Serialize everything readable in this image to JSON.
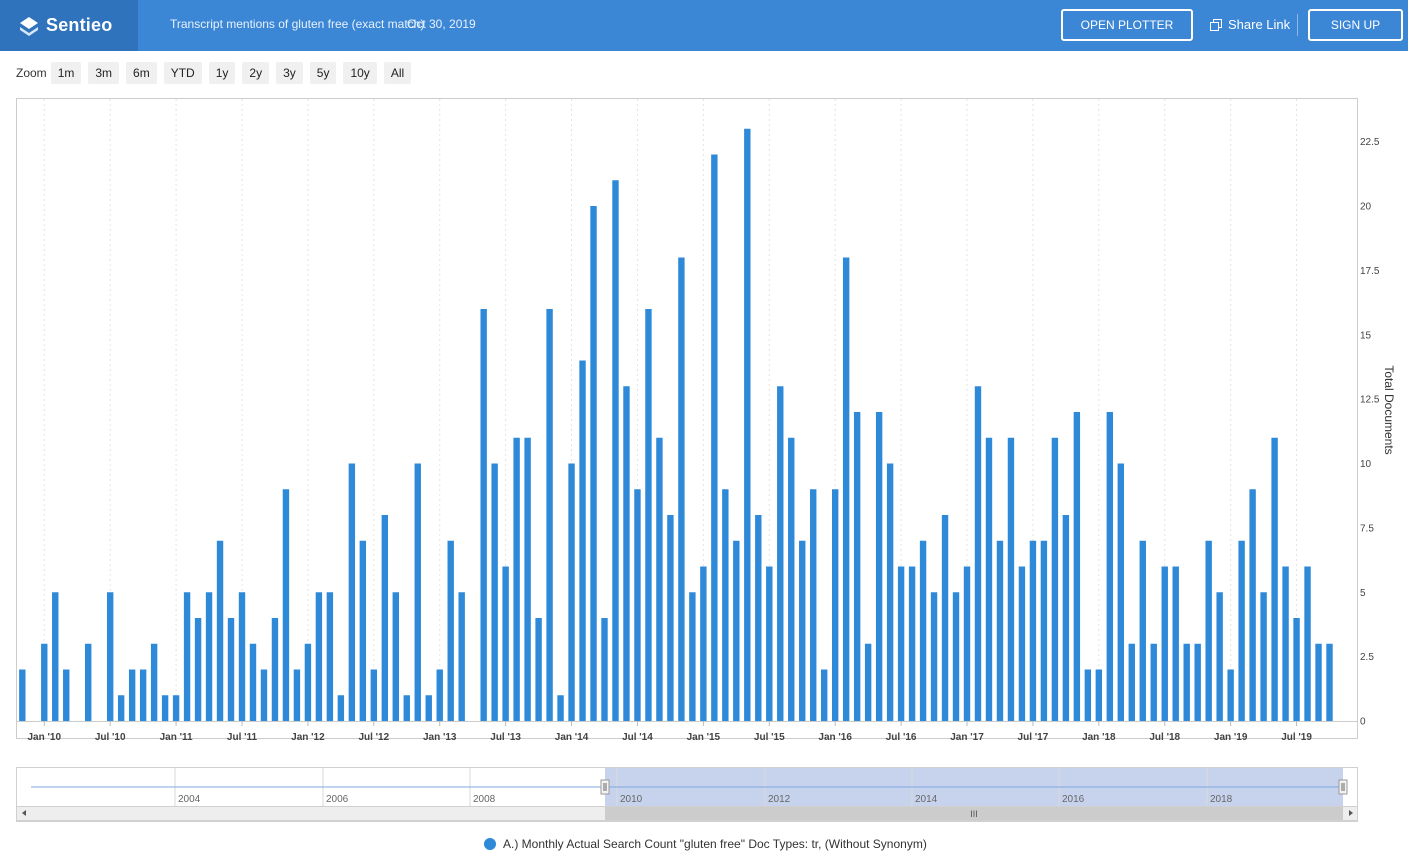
{
  "header": {
    "brand": "Sentieo",
    "title": "Transcript mentions of gluten free (exact match)",
    "date": "Oct 30, 2019",
    "open_plotter": "OPEN PLOTTER",
    "share_link": "Share Link",
    "sign_up": "SIGN UP"
  },
  "zoom": {
    "label": "Zoom",
    "buttons": [
      "1m",
      "3m",
      "6m",
      "YTD",
      "1y",
      "2y",
      "3y",
      "5y",
      "10y",
      "All"
    ]
  },
  "colors": {
    "accent": "#3b87d6",
    "bar": "#2e8ad8",
    "brand_bg": "#2f73bd"
  },
  "legend": {
    "label": "A.) Monthly Actual Search Count \"gluten free\" Doc Types: tr, (Without Synonym)"
  },
  "navigator": {
    "year_labels": [
      "2004",
      "2006",
      "2008",
      "2010",
      "2012",
      "2014",
      "2016",
      "2018"
    ],
    "selected_start": "2010",
    "selected_end": "2019"
  },
  "chart_data": {
    "type": "bar",
    "ylabel": "Total Documents",
    "ylim": [
      0,
      23.5
    ],
    "y_ticks": [
      "0",
      "2.5",
      "5",
      "7.5",
      "10",
      "12.5",
      "15",
      "17.5",
      "20",
      "22.5"
    ],
    "x_ticks": [
      "Jan '10",
      "Jul '10",
      "Jan '11",
      "Jul '11",
      "Jan '12",
      "Jul '12",
      "Jan '13",
      "Jul '13",
      "Jan '14",
      "Jul '14",
      "Jan '15",
      "Jul '15",
      "Jan '16",
      "Jul '16",
      "Jan '17",
      "Jul '17",
      "Jan '18",
      "Jul '18",
      "Jan '19",
      "Jul '19"
    ],
    "x_start": "2009-11",
    "series": [
      {
        "name": "A.) Monthly Actual Search Count \"gluten free\" Doc Types: tr, (Without Synonym)",
        "values": [
          2,
          0,
          3,
          5,
          2,
          0,
          3,
          0,
          5,
          1,
          2,
          2,
          3,
          1,
          1,
          5,
          4,
          5,
          7,
          4,
          5,
          3,
          2,
          4,
          9,
          2,
          3,
          5,
          5,
          1,
          10,
          7,
          2,
          8,
          5,
          1,
          10,
          1,
          2,
          7,
          5,
          0,
          16,
          10,
          6,
          11,
          11,
          4,
          16,
          1,
          10,
          14,
          20,
          4,
          21,
          13,
          9,
          16,
          11,
          8,
          18,
          5,
          6,
          22,
          9,
          7,
          23,
          8,
          6,
          13,
          11,
          7,
          9,
          2,
          9,
          18,
          12,
          3,
          12,
          10,
          6,
          6,
          7,
          5,
          8,
          5,
          6,
          13,
          11,
          7,
          11,
          6,
          7,
          7,
          11,
          8,
          12,
          2,
          2,
          12,
          10,
          3,
          7,
          3,
          6,
          6,
          3,
          3,
          7,
          5,
          2,
          7,
          9,
          5,
          11,
          6,
          4,
          6,
          3,
          3
        ]
      }
    ]
  }
}
